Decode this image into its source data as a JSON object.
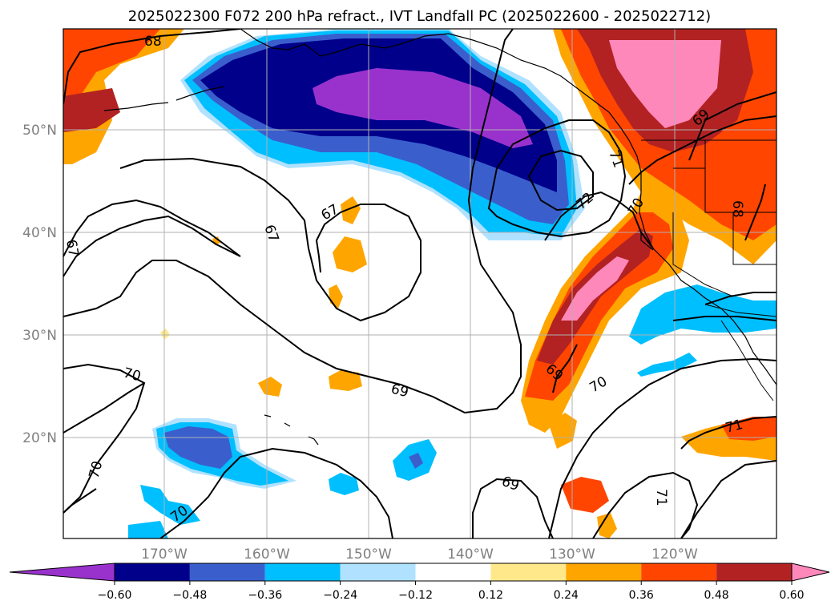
{
  "title": "2025022300 F072 200 hPa refract., IVT Landfall PC (2025022600 - 2025022712)",
  "lat_labels": [
    "50°N",
    "40°N",
    "30°N",
    "20°N"
  ],
  "lon_labels": [
    "170°W",
    "160°W",
    "150°W",
    "140°W",
    "130°W",
    "120°W"
  ],
  "colorbar": {
    "colors": [
      "#9932cc",
      "#00008b",
      "#3a5fcd",
      "#00bfff",
      "#b0e2ff",
      "#ffffff",
      "#ffe88a",
      "#ffa500",
      "#ff4500",
      "#b22222",
      "#ff88bb"
    ],
    "tick_labels": [
      "−0.60",
      "−0.48",
      "−0.36",
      "−0.24",
      "−0.12",
      "0.12",
      "0.24",
      "0.36",
      "0.48",
      "0.60"
    ]
  },
  "contour_labels": [
    "68",
    "67",
    "68",
    "67",
    "69",
    "70",
    "72",
    "71",
    "70",
    "68",
    "70",
    "69",
    "70",
    "69",
    "70",
    "71",
    "71",
    "70"
  ],
  "colors": {
    "grid": "#b0b0b0",
    "contour": "#000000",
    "coast": "#000000"
  }
}
